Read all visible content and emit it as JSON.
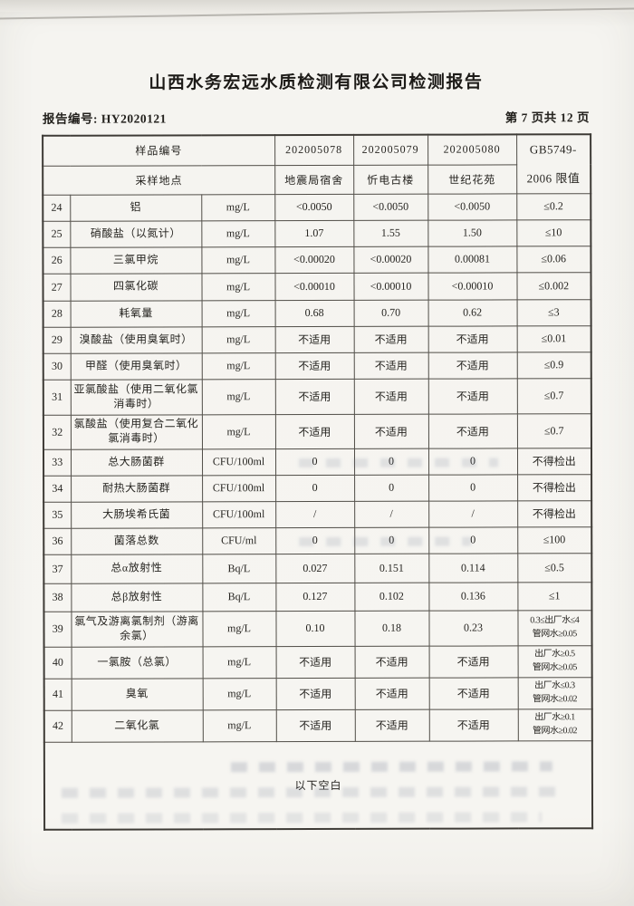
{
  "page": {
    "title": "山西水务宏远水质检测有限公司检测报告",
    "report_no": "报告编号: HY2020121",
    "page_indicator": "第 7 页共 12 页"
  },
  "table": {
    "header": {
      "sample_id_label": "样品编号",
      "sample_site_label": "采样地点",
      "sample_ids": [
        "202005078",
        "202005079",
        "202005080"
      ],
      "sample_sites": [
        "地震局宿舍",
        "忻电古楼",
        "世纪花苑"
      ],
      "limit_line1": "GB5749-",
      "limit_line2": "2006 限值"
    },
    "rows": [
      {
        "no": "24",
        "name": "铝",
        "unit": "mg/L",
        "v1": "<0.0050",
        "v2": "<0.0050",
        "v3": "<0.0050",
        "limit": "≤0.2"
      },
      {
        "no": "25",
        "name": "硝酸盐（以氮计）",
        "unit": "mg/L",
        "v1": "1.07",
        "v2": "1.55",
        "v3": "1.50",
        "limit": "≤10"
      },
      {
        "no": "26",
        "name": "三氯甲烷",
        "unit": "mg/L",
        "v1": "<0.00020",
        "v2": "<0.00020",
        "v3": "0.00081",
        "limit": "≤0.06"
      },
      {
        "no": "27",
        "name": "四氯化碳",
        "unit": "mg/L",
        "v1": "<0.00010",
        "v2": "<0.00010",
        "v3": "<0.00010",
        "limit": "≤0.002"
      },
      {
        "no": "28",
        "name": "耗氧量",
        "unit": "mg/L",
        "v1": "0.68",
        "v2": "0.70",
        "v3": "0.62",
        "limit": "≤3"
      },
      {
        "no": "29",
        "name": "溴酸盐（使用臭氧时）",
        "unit": "mg/L",
        "v1": "不适用",
        "v2": "不适用",
        "v3": "不适用",
        "limit": "≤0.01"
      },
      {
        "no": "30",
        "name": "甲醛（使用臭氧时）",
        "unit": "mg/L",
        "v1": "不适用",
        "v2": "不适用",
        "v3": "不适用",
        "limit": "≤0.9"
      },
      {
        "no": "31",
        "name": "亚氯酸盐（使用二氧化氯消毒时）",
        "unit": "mg/L",
        "v1": "不适用",
        "v2": "不适用",
        "v3": "不适用",
        "limit": "≤0.7"
      },
      {
        "no": "32",
        "name": "氯酸盐（使用复合二氧化氯消毒时）",
        "unit": "mg/L",
        "v1": "不适用",
        "v2": "不适用",
        "v3": "不适用",
        "limit": "≤0.7"
      },
      {
        "no": "33",
        "name": "总大肠菌群",
        "unit": "CFU/100ml",
        "v1": "0",
        "v2": "0",
        "v3": "0",
        "limit": "不得检出"
      },
      {
        "no": "34",
        "name": "耐热大肠菌群",
        "unit": "CFU/100ml",
        "v1": "0",
        "v2": "0",
        "v3": "0",
        "limit": "不得检出"
      },
      {
        "no": "35",
        "name": "大肠埃希氏菌",
        "unit": "CFU/100ml",
        "v1": "/",
        "v2": "/",
        "v3": "/",
        "limit": "不得检出"
      },
      {
        "no": "36",
        "name": "菌落总数",
        "unit": "CFU/ml",
        "v1": "0",
        "v2": "0",
        "v3": "0",
        "limit": "≤100"
      },
      {
        "no": "37",
        "name": "总α放射性",
        "unit": "Bq/L",
        "v1": "0.027",
        "v2": "0.151",
        "v3": "0.114",
        "limit": "≤0.5"
      },
      {
        "no": "38",
        "name": "总β放射性",
        "unit": "Bq/L",
        "v1": "0.127",
        "v2": "0.102",
        "v3": "0.136",
        "limit": "≤1"
      },
      {
        "no": "39",
        "name": "氯气及游离氯制剂（游离余氯）",
        "unit": "mg/L",
        "v1": "0.10",
        "v2": "0.18",
        "v3": "0.23",
        "limit": "0.3≤出厂水≤4",
        "limit2": "管网水≥0.05"
      },
      {
        "no": "40",
        "name": "一氯胺（总氯）",
        "unit": "mg/L",
        "v1": "不适用",
        "v2": "不适用",
        "v3": "不适用",
        "limit": "出厂水≥0.5",
        "limit2": "管网水≥0.05"
      },
      {
        "no": "41",
        "name": "臭氧",
        "unit": "mg/L",
        "v1": "不适用",
        "v2": "不适用",
        "v3": "不适用",
        "limit": "出厂水≤0.3",
        "limit2": "管网水≥0.02"
      },
      {
        "no": "42",
        "name": "二氧化氯",
        "unit": "mg/L",
        "v1": "不适用",
        "v2": "不适用",
        "v3": "不适用",
        "limit": "出厂水≥0.1",
        "limit2": "管网水≥0.02"
      }
    ],
    "footer_note": "以下空白"
  }
}
